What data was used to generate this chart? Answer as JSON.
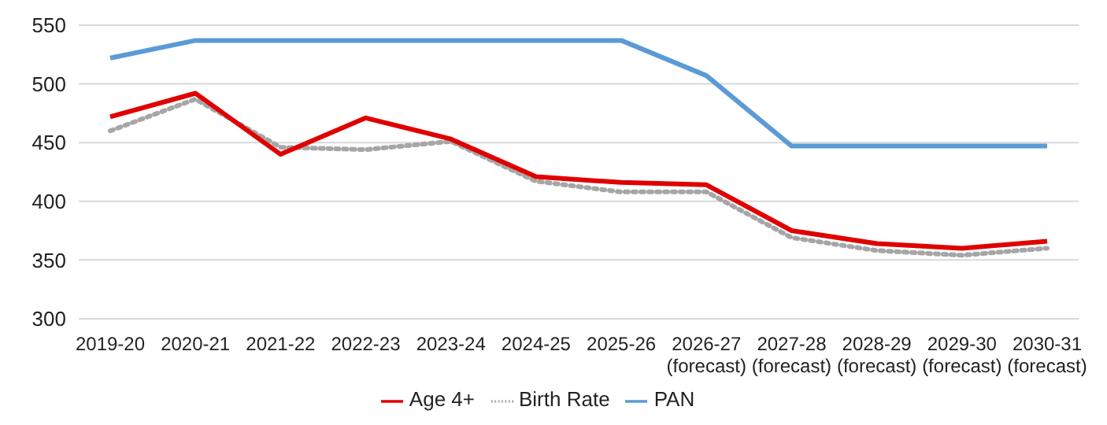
{
  "chart_data": {
    "type": "line",
    "categories": [
      "2019-20",
      "2020-21",
      "2021-22",
      "2022-23",
      "2023-24",
      "2024-25",
      "2025-26",
      "2026-27\n(forecast)",
      "2027-28\n(forecast)",
      "2028-29\n(forecast)",
      "2029-30\n(forecast)",
      "2030-31\n(forecast)"
    ],
    "series": [
      {
        "name": "Birth  Rate",
        "color": "#a6a6a6",
        "line_style": "dotted",
        "values": [
          460,
          487,
          446,
          444,
          451,
          417,
          408,
          408,
          369,
          358,
          354,
          360
        ]
      },
      {
        "name": "PAN",
        "color": "#5b9bd5",
        "line_style": "solid",
        "values": [
          522,
          537,
          537,
          537,
          537,
          537,
          537,
          507,
          447,
          447,
          447,
          447
        ]
      },
      {
        "name": "Age 4+",
        "color": "#e00000",
        "line_style": "solid",
        "values": [
          472,
          492,
          440,
          471,
          453,
          421,
          416,
          414,
          375,
          364,
          360,
          366
        ]
      }
    ],
    "ylim": [
      300,
      550
    ],
    "yticks": [
      300,
      350,
      400,
      450,
      500,
      550
    ],
    "grid": "y",
    "legend": "bottom",
    "marker": "none"
  }
}
